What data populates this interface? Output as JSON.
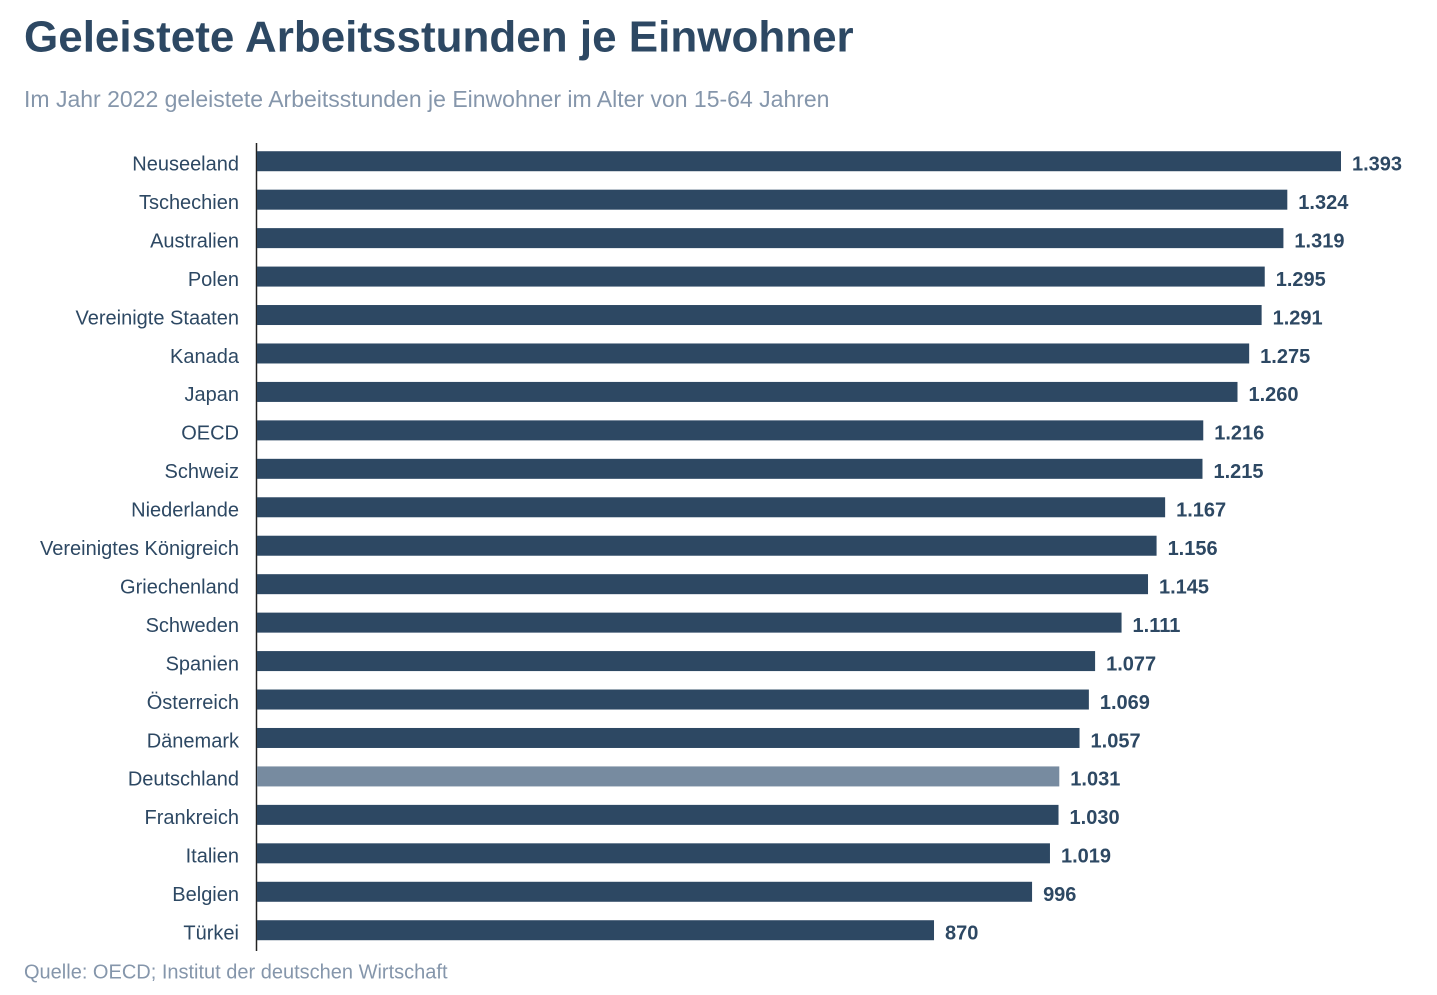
{
  "chart_data": {
    "type": "hbar",
    "title": "Geleistete Arbeitsstunden je Einwohner",
    "subtitle": "Im Jahr 2022 geleistete Arbeitsstunden je Einwohner im Alter von 15-64 Jahren",
    "source": "Quelle: OECD; Institut der deutschen Wirtschaft",
    "categories": [
      "Neuseeland",
      "Tschechien",
      "Australien",
      "Polen",
      "Vereinigte Staaten",
      "Kanada",
      "Japan",
      "OECD",
      "Schweiz",
      "Niederlande",
      "Vereinigtes Königreich",
      "Griechenland",
      "Schweden",
      "Spanien",
      "Österreich",
      "Dänemark",
      "Deutschland",
      "Frankreich",
      "Italien",
      "Belgien",
      "Türkei"
    ],
    "values": [
      1393,
      1324,
      1319,
      1295,
      1291,
      1275,
      1260,
      1216,
      1215,
      1167,
      1156,
      1145,
      1111,
      1077,
      1069,
      1057,
      1031,
      1030,
      1019,
      996,
      870
    ],
    "value_labels": [
      "1.393",
      "1.324",
      "1.319",
      "1.295",
      "1.291",
      "1.275",
      "1.260",
      "1.216",
      "1.215",
      "1.167",
      "1.156",
      "1.145",
      "1.111",
      "1.077",
      "1.069",
      "1.057",
      "1.031",
      "1.030",
      "1.019",
      "996",
      "870"
    ],
    "colors": [
      "#2d4863",
      "#2d4863",
      "#2d4863",
      "#2d4863",
      "#2d4863",
      "#2d4863",
      "#2d4863",
      "#2d4863",
      "#2d4863",
      "#2d4863",
      "#2d4863",
      "#2d4863",
      "#2d4863",
      "#2d4863",
      "#2d4863",
      "#2d4863",
      "#778ba0",
      "#2d4863",
      "#2d4863",
      "#2d4863",
      "#2d4863"
    ]
  }
}
